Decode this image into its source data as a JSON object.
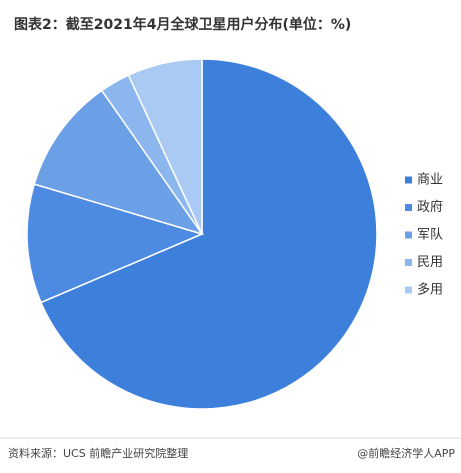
{
  "chart_data": {
    "type": "pie",
    "title": "图表2：截至2021年4月全球卫星用户分布(单位：%)",
    "categories": [
      "商业",
      "政府",
      "军队",
      "民用",
      "多用"
    ],
    "values": [
      68.6,
      11,
      10.7,
      2.8,
      6.9
    ],
    "colors": [
      "#3d80dc",
      "#4c8be1",
      "#6b9fe6",
      "#8bb6ee",
      "#aacaf4"
    ],
    "legend": "right",
    "source": "资料来源：UCS 前瞻产业研究院整理",
    "credit": "@前瞻经济学人APP"
  }
}
